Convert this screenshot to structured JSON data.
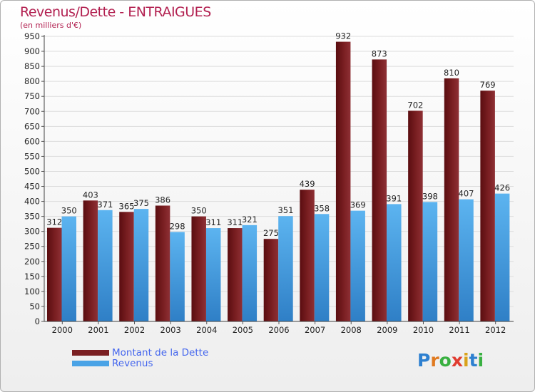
{
  "header": {
    "title": "Revenus/Dette - ENTRAIGUES",
    "subtitle": "(en milliers d'€)"
  },
  "legend": {
    "debt_label": "Montant de la Dette",
    "revenue_label": "Revenus"
  },
  "logo": {
    "text": "Proxiti",
    "letters": [
      "P",
      "r",
      "o",
      "x",
      "i",
      "t",
      "i"
    ],
    "letter_colors": [
      "#2e80d0",
      "#e07a20",
      "#38b040",
      "#e03c30",
      "#d9a21a",
      "#2e80d0",
      "#38b040"
    ]
  },
  "colors": {
    "debt": "#7a1f22",
    "revenue": "#4aa3e6",
    "title": "#b22050",
    "legend_text": "#4466ee"
  },
  "chart_data": {
    "type": "bar",
    "title": "Revenus/Dette - ENTRAIGUES",
    "subtitle": "(en milliers d'€)",
    "categories": [
      "2000",
      "2001",
      "2002",
      "2003",
      "2004",
      "2005",
      "2006",
      "2007",
      "2008",
      "2009",
      "2010",
      "2011",
      "2012"
    ],
    "series": [
      {
        "name": "Montant de la Dette",
        "color": "#7a1f22",
        "values": [
          312,
          403,
          365,
          386,
          350,
          311,
          275,
          439,
          932,
          873,
          702,
          810,
          769
        ]
      },
      {
        "name": "Revenus",
        "color": "#4aa3e6",
        "values": [
          350,
          371,
          375,
          298,
          311,
          321,
          351,
          358,
          369,
          391,
          398,
          407,
          426
        ]
      }
    ],
    "ylim": [
      0,
      950
    ],
    "ytick_step": 50,
    "grid": true,
    "legend_position": "bottom-left"
  }
}
